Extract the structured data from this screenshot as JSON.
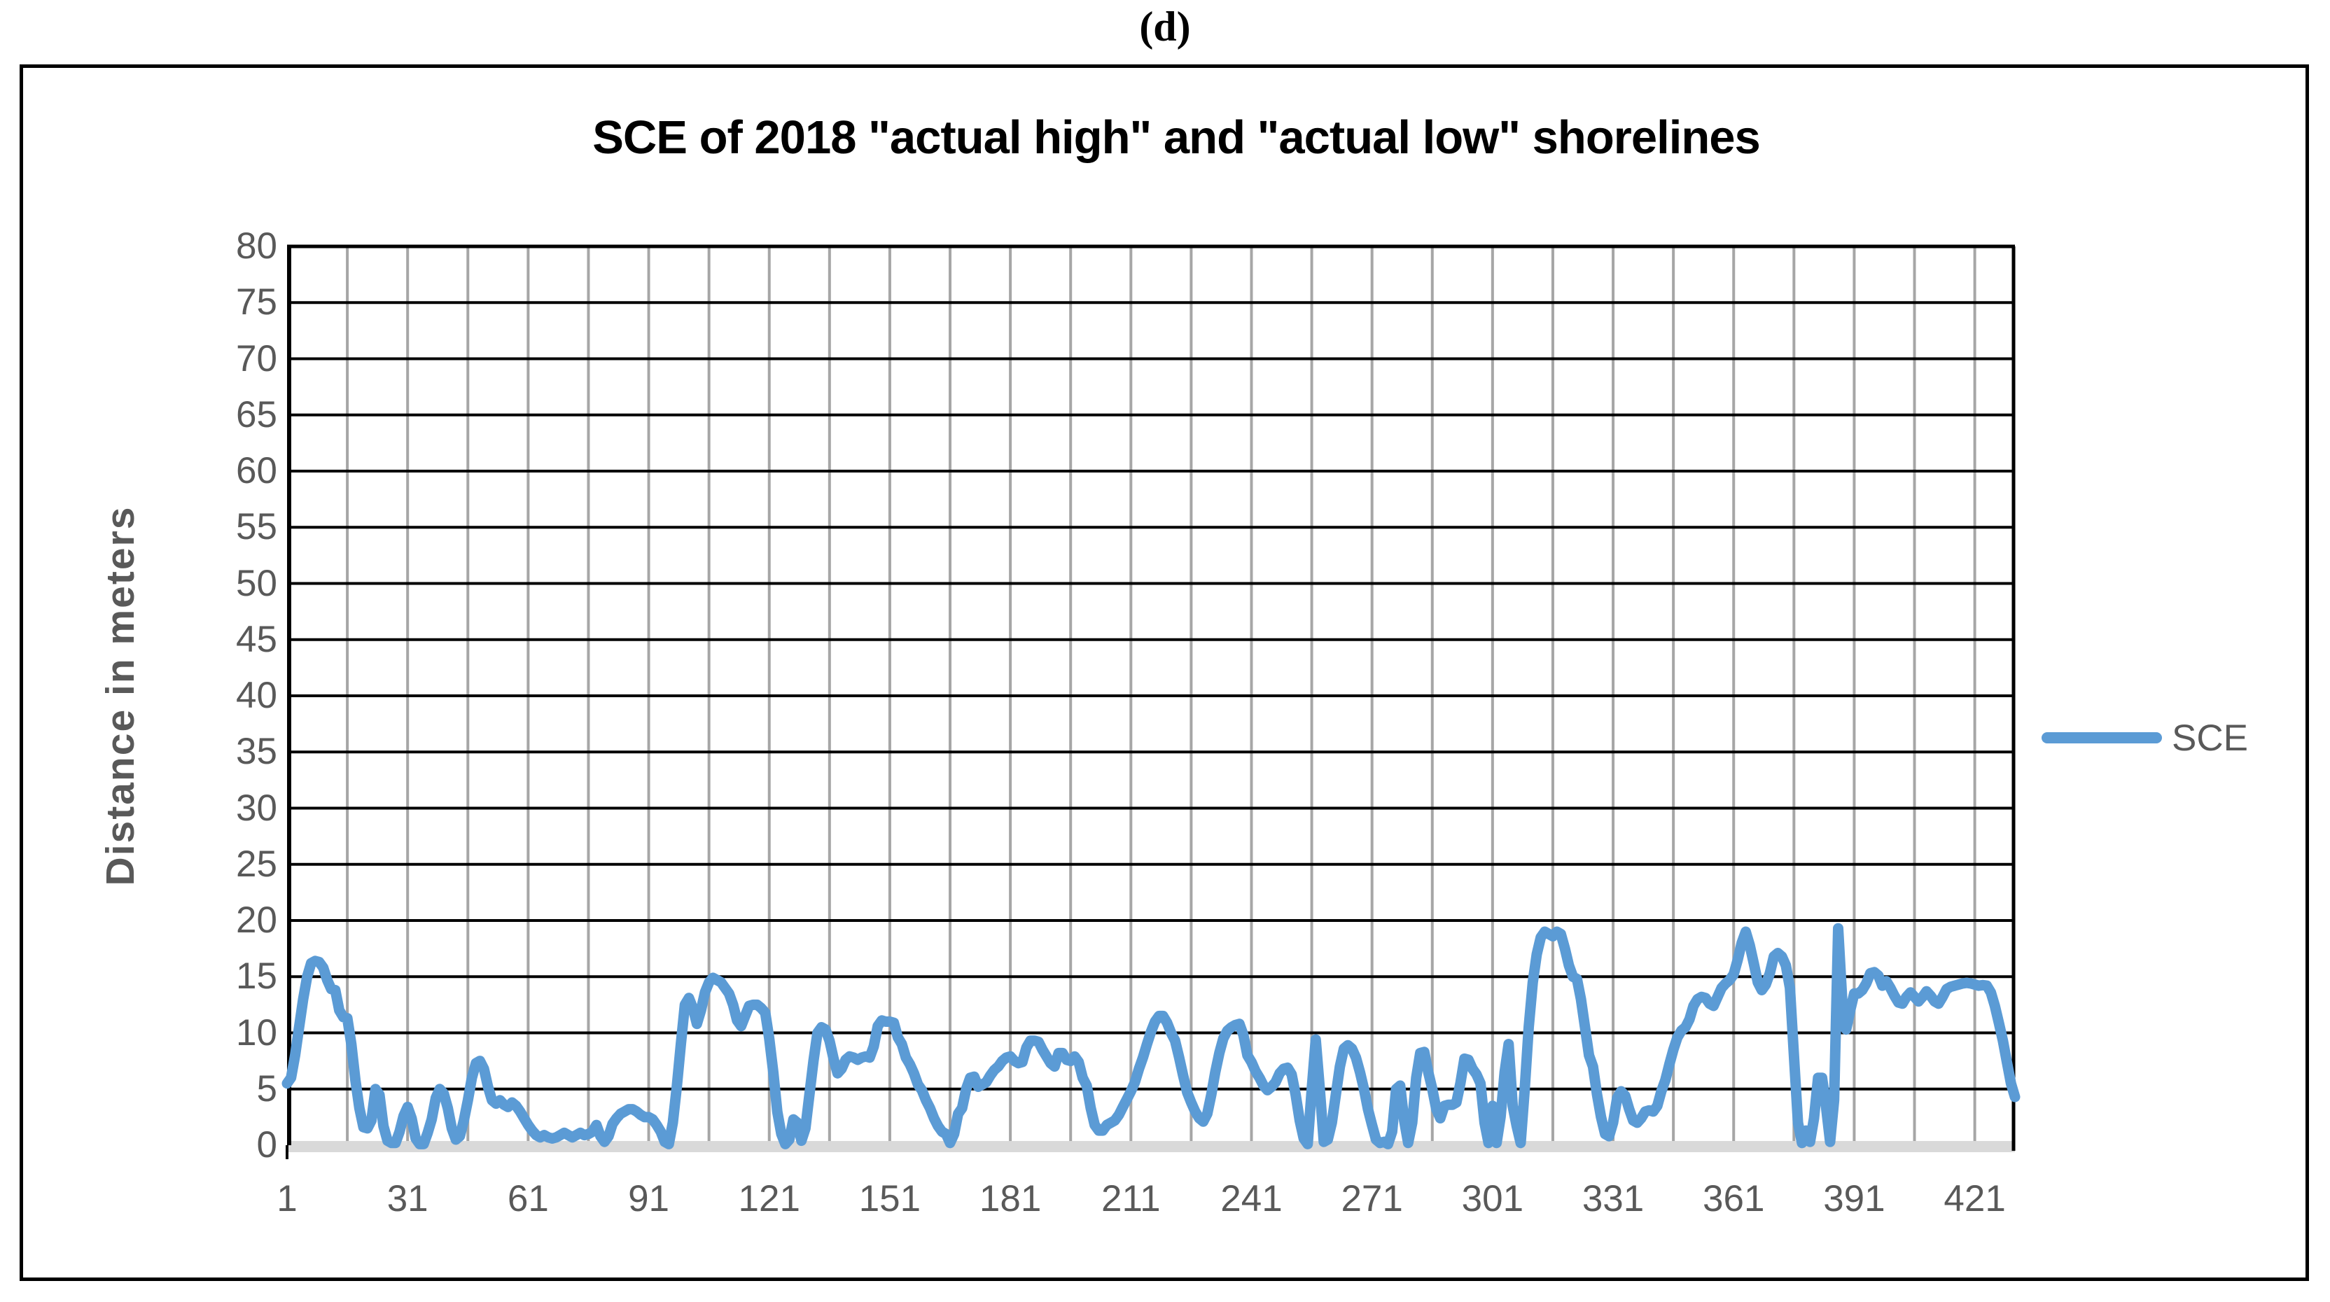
{
  "figure_label": "(d)",
  "colors": {
    "series_blue": "#5B9BD5",
    "h_gridline": "#000000",
    "v_gridline": "#A6A6A6",
    "baseline_band": "#D9D9D9",
    "tick_label_gray": "#595959",
    "axis_title_gray": "#595959",
    "title_black": "#000000",
    "frame_border": "#000000"
  },
  "chart_data": {
    "type": "line",
    "title": "SCE of 2018 \"actual high\" and \"actual low\" shorelines",
    "xlabel": "",
    "ylabel": "Distance in meters",
    "ylim": [
      0,
      80
    ],
    "ytick_step": 5,
    "yticks": [
      0,
      5,
      10,
      15,
      20,
      25,
      30,
      35,
      40,
      45,
      50,
      55,
      60,
      65,
      70,
      75,
      80
    ],
    "xticks": [
      1,
      31,
      61,
      91,
      121,
      151,
      181,
      211,
      241,
      271,
      301,
      331,
      361,
      391,
      421
    ],
    "x_first": 1,
    "x_last": 431,
    "x_gridline_interval": 15,
    "grid": "both",
    "legend_position": "right-middle",
    "series": [
      {
        "name": "SCE",
        "color": "#5B9BD5",
        "values": [
          5.5,
          6.0,
          8.0,
          10.5,
          13.0,
          15.0,
          16.2,
          16.4,
          16.3,
          15.8,
          14.7,
          13.9,
          13.8,
          12.0,
          11.4,
          11.3,
          9.0,
          5.8,
          3.3,
          1.6,
          1.5,
          2.2,
          5.0,
          4.5,
          1.7,
          0.4,
          0.2,
          0.2,
          1.2,
          2.6,
          3.4,
          2.4,
          0.6,
          0.1,
          0.1,
          1.1,
          2.3,
          4.2,
          5.0,
          4.6,
          3.3,
          1.5,
          0.5,
          0.8,
          2.2,
          4.0,
          6.0,
          7.3,
          7.5,
          6.8,
          5.2,
          4.0,
          3.7,
          4.0,
          3.6,
          3.4,
          3.8,
          3.5,
          3.0,
          2.4,
          1.8,
          1.3,
          0.9,
          0.7,
          0.9,
          0.7,
          0.6,
          0.7,
          0.9,
          1.1,
          0.9,
          0.7,
          0.9,
          1.1,
          0.9,
          1.0,
          1.2,
          1.8,
          0.8,
          0.3,
          0.8,
          1.9,
          2.4,
          2.8,
          3.0,
          3.2,
          3.2,
          3.0,
          2.7,
          2.5,
          2.5,
          2.3,
          1.8,
          1.2,
          0.3,
          0.1,
          2.0,
          5.2,
          9.0,
          12.5,
          13.1,
          12.2,
          10.8,
          12.0,
          13.6,
          14.5,
          14.9,
          14.7,
          14.5,
          14.0,
          13.5,
          12.5,
          11.1,
          10.6,
          11.5,
          12.4,
          12.5,
          12.5,
          12.2,
          11.8,
          9.5,
          6.5,
          3.0,
          1.0,
          0.1,
          0.5,
          2.3,
          2.0,
          0.4,
          1.5,
          4.5,
          7.5,
          10.0,
          10.5,
          10.3,
          9.3,
          7.7,
          6.4,
          6.8,
          7.6,
          7.9,
          7.8,
          7.6,
          7.8,
          7.9,
          7.8,
          8.8,
          10.6,
          11.1,
          11.0,
          11.0,
          10.9,
          9.6,
          9.0,
          7.8,
          7.2,
          6.4,
          5.4,
          4.9,
          4.0,
          3.3,
          2.4,
          1.7,
          1.2,
          1.0,
          0.2,
          1.0,
          2.8,
          3.3,
          5.0,
          6.0,
          6.1,
          5.2,
          5.4,
          5.6,
          6.2,
          6.7,
          7.0,
          7.5,
          7.8,
          7.9,
          7.5,
          7.3,
          7.4,
          8.7,
          9.3,
          9.3,
          9.2,
          8.5,
          7.9,
          7.3,
          7.0,
          8.2,
          8.2,
          7.6,
          7.5,
          7.9,
          7.4,
          6.0,
          5.3,
          3.3,
          1.8,
          1.3,
          1.3,
          1.8,
          2.0,
          2.2,
          2.7,
          3.4,
          4.1,
          4.8,
          5.6,
          6.8,
          7.8,
          9.0,
          10.1,
          11.0,
          11.5,
          11.5,
          10.9,
          10.0,
          9.3,
          7.8,
          6.2,
          4.7,
          3.8,
          3.0,
          2.4,
          2.1,
          2.8,
          4.5,
          6.5,
          8.2,
          9.5,
          10.2,
          10.5,
          10.7,
          10.8,
          9.8,
          8.0,
          7.4,
          6.6,
          6.0,
          5.3,
          4.9,
          5.2,
          5.6,
          6.4,
          6.8,
          6.9,
          6.3,
          4.5,
          2.2,
          0.6,
          0.1,
          5.0,
          9.4,
          5.0,
          0.3,
          0.5,
          2.0,
          4.5,
          7.0,
          8.6,
          8.9,
          8.6,
          7.8,
          6.5,
          5.0,
          3.2,
          1.8,
          0.5,
          0.2,
          0.3,
          0.1,
          1.2,
          5.0,
          5.3,
          2.2,
          0.2,
          2.0,
          6.0,
          8.2,
          8.3,
          6.5,
          5.0,
          3.2,
          2.4,
          3.5,
          3.6,
          3.6,
          3.8,
          5.5,
          7.7,
          7.6,
          6.8,
          6.3,
          5.5,
          2.0,
          0.2,
          3.5,
          0.2,
          2.5,
          6.5,
          9.0,
          3.5,
          1.7,
          0.2,
          5.0,
          10.5,
          14.5,
          17.0,
          18.5,
          19.0,
          18.8,
          18.6,
          19.0,
          18.8,
          17.5,
          16.0,
          15.0,
          14.8,
          13.0,
          10.5,
          8.0,
          7.0,
          4.5,
          2.5,
          1.0,
          0.8,
          2.0,
          4.2,
          4.8,
          4.4,
          3.2,
          2.2,
          2.0,
          2.4,
          3.0,
          3.1,
          3.0,
          3.5,
          4.8,
          5.8,
          7.2,
          8.5,
          9.6,
          10.2,
          10.5,
          11.2,
          12.4,
          13.0,
          13.2,
          13.1,
          12.6,
          12.4,
          13.2,
          14.0,
          14.4,
          14.7,
          15.2,
          16.5,
          18.0,
          19.0,
          17.8,
          16.2,
          14.5,
          13.8,
          14.3,
          15.3,
          16.8,
          17.1,
          16.8,
          16.0,
          14.0,
          8.0,
          2.0,
          0.2,
          1.3,
          0.3,
          2.4,
          6.0,
          6.0,
          3.4,
          0.3,
          4.0,
          19.3,
          13.0,
          10.3,
          12.0,
          13.5,
          13.5,
          13.8,
          14.4,
          15.3,
          15.4,
          15.1,
          14.2,
          14.6,
          14.0,
          13.3,
          12.7,
          12.6,
          13.2,
          13.6,
          13.2,
          12.8,
          13.2,
          13.7,
          13.3,
          12.8,
          12.6,
          13.2,
          13.9,
          14.1,
          14.2,
          14.3,
          14.4,
          14.45,
          14.4,
          14.3,
          14.2,
          14.25,
          14.2,
          13.6,
          12.4,
          10.9,
          9.3,
          7.4,
          5.5,
          4.3
        ]
      }
    ]
  }
}
